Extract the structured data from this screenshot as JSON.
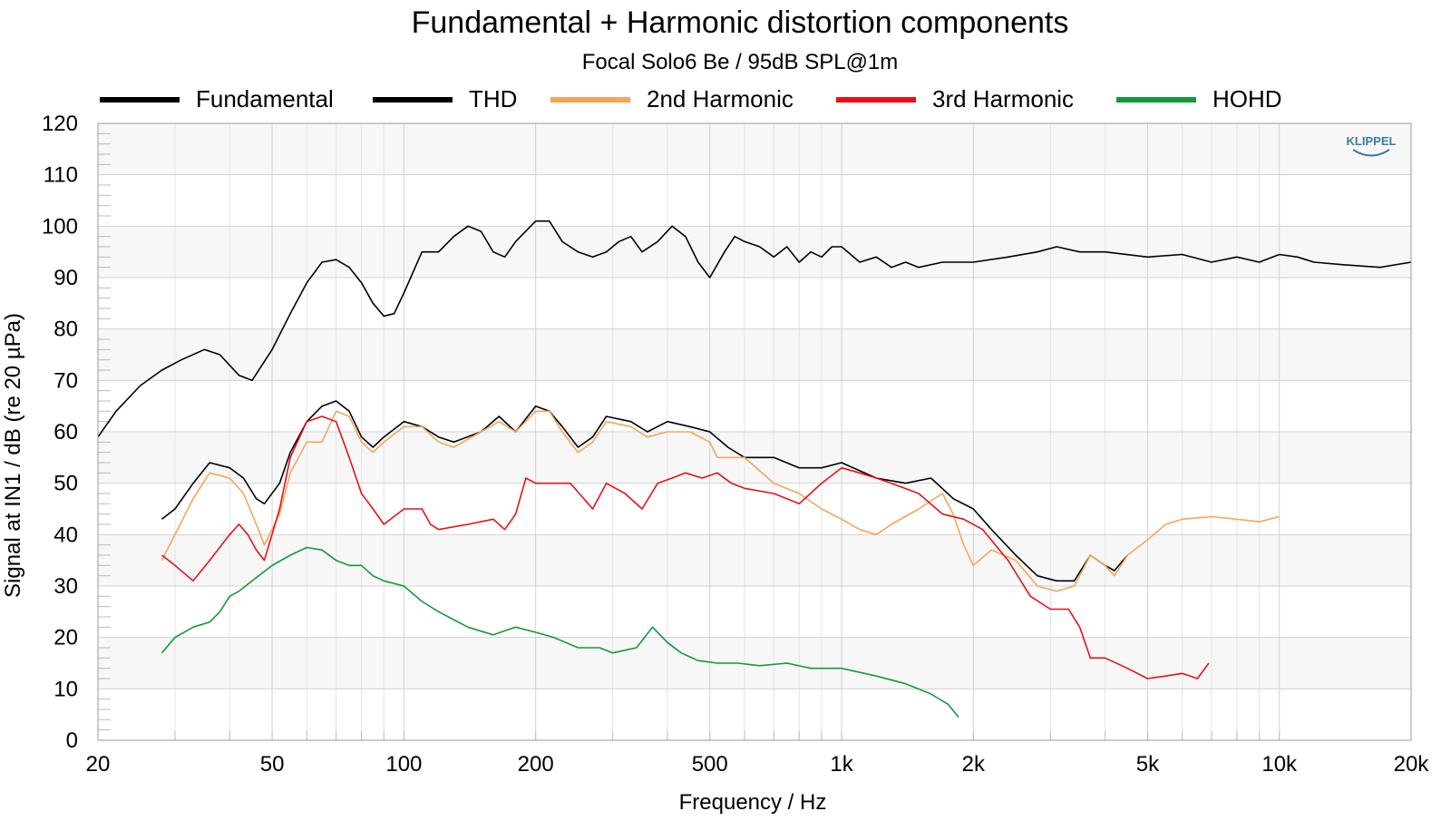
{
  "chart_data": {
    "type": "line",
    "title": "Fundamental + Harmonic distortion components",
    "subtitle": "Focal Solo6 Be / 95dB SPL@1m",
    "xlabel": "Frequency / Hz",
    "ylabel": "Signal at IN1 / dB (re 20 µPa)",
    "x_scale": "log",
    "xlim": [
      20,
      20000
    ],
    "ylim": [
      0,
      120
    ],
    "grid": true,
    "legend_position": "top",
    "watermark": "KLIPPEL",
    "x_ticks": [
      {
        "value": 20,
        "label": "20"
      },
      {
        "value": 50,
        "label": "50"
      },
      {
        "value": 100,
        "label": "100"
      },
      {
        "value": 200,
        "label": "200"
      },
      {
        "value": 500,
        "label": "500"
      },
      {
        "value": 1000,
        "label": "1k"
      },
      {
        "value": 2000,
        "label": "2k"
      },
      {
        "value": 5000,
        "label": "5k"
      },
      {
        "value": 10000,
        "label": "10k"
      },
      {
        "value": 20000,
        "label": "20k"
      }
    ],
    "y_ticks": [
      0,
      10,
      20,
      30,
      40,
      50,
      60,
      70,
      80,
      90,
      100,
      110,
      120
    ],
    "series": [
      {
        "name": "Fundamental",
        "color": "#000000",
        "legend_line_width": 6,
        "points": [
          [
            20,
            59
          ],
          [
            22,
            64
          ],
          [
            25,
            69
          ],
          [
            28,
            72
          ],
          [
            31,
            74
          ],
          [
            35,
            76
          ],
          [
            38,
            75
          ],
          [
            42,
            71
          ],
          [
            45,
            70
          ],
          [
            50,
            76
          ],
          [
            55,
            83
          ],
          [
            60,
            89
          ],
          [
            65,
            93
          ],
          [
            70,
            93.5
          ],
          [
            75,
            92
          ],
          [
            80,
            89
          ],
          [
            85,
            85
          ],
          [
            90,
            82.5
          ],
          [
            95,
            83
          ],
          [
            100,
            87
          ],
          [
            110,
            95
          ],
          [
            120,
            95
          ],
          [
            130,
            98
          ],
          [
            140,
            100
          ],
          [
            150,
            99
          ],
          [
            160,
            95
          ],
          [
            170,
            94
          ],
          [
            180,
            97
          ],
          [
            200,
            101
          ],
          [
            215,
            101
          ],
          [
            230,
            97
          ],
          [
            250,
            95
          ],
          [
            270,
            94
          ],
          [
            290,
            95
          ],
          [
            310,
            97
          ],
          [
            330,
            98
          ],
          [
            350,
            95
          ],
          [
            380,
            97
          ],
          [
            410,
            100
          ],
          [
            440,
            98
          ],
          [
            470,
            93
          ],
          [
            500,
            90
          ],
          [
            540,
            95
          ],
          [
            570,
            98
          ],
          [
            600,
            97
          ],
          [
            650,
            96
          ],
          [
            700,
            94
          ],
          [
            750,
            96
          ],
          [
            800,
            93
          ],
          [
            850,
            95
          ],
          [
            900,
            94
          ],
          [
            950,
            96
          ],
          [
            1000,
            96
          ],
          [
            1100,
            93
          ],
          [
            1200,
            94
          ],
          [
            1300,
            92
          ],
          [
            1400,
            93
          ],
          [
            1500,
            92
          ],
          [
            1700,
            93
          ],
          [
            2000,
            93
          ],
          [
            2400,
            94
          ],
          [
            2800,
            95
          ],
          [
            3100,
            96
          ],
          [
            3500,
            95
          ],
          [
            4000,
            95
          ],
          [
            5000,
            94
          ],
          [
            6000,
            94.5
          ],
          [
            7000,
            93
          ],
          [
            8000,
            94
          ],
          [
            9000,
            93
          ],
          [
            10000,
            94.5
          ],
          [
            11000,
            94
          ],
          [
            12000,
            93
          ],
          [
            14000,
            92.5
          ],
          [
            17000,
            92
          ],
          [
            20000,
            93
          ]
        ]
      },
      {
        "name": "THD",
        "color": "#000000",
        "legend_line_width": 6,
        "points": [
          [
            28,
            43
          ],
          [
            30,
            45
          ],
          [
            33,
            50
          ],
          [
            36,
            54
          ],
          [
            40,
            53
          ],
          [
            43,
            51
          ],
          [
            46,
            47
          ],
          [
            48,
            46
          ],
          [
            52,
            50
          ],
          [
            55,
            56
          ],
          [
            60,
            62
          ],
          [
            65,
            65
          ],
          [
            70,
            66
          ],
          [
            75,
            64
          ],
          [
            80,
            59
          ],
          [
            85,
            57
          ],
          [
            90,
            59
          ],
          [
            100,
            62
          ],
          [
            110,
            61
          ],
          [
            120,
            59
          ],
          [
            130,
            58
          ],
          [
            150,
            60
          ],
          [
            165,
            63
          ],
          [
            180,
            60
          ],
          [
            200,
            65
          ],
          [
            215,
            64
          ],
          [
            230,
            61
          ],
          [
            250,
            57
          ],
          [
            270,
            59
          ],
          [
            290,
            63
          ],
          [
            330,
            62
          ],
          [
            360,
            60
          ],
          [
            400,
            62
          ],
          [
            450,
            61
          ],
          [
            500,
            60
          ],
          [
            550,
            57
          ],
          [
            600,
            55
          ],
          [
            700,
            55
          ],
          [
            800,
            53
          ],
          [
            900,
            53
          ],
          [
            1000,
            54
          ],
          [
            1200,
            51
          ],
          [
            1400,
            50
          ],
          [
            1600,
            51
          ],
          [
            1800,
            47
          ],
          [
            2000,
            45
          ],
          [
            2200,
            41
          ],
          [
            2500,
            36
          ],
          [
            2800,
            32
          ],
          [
            3100,
            31
          ],
          [
            3400,
            31
          ],
          [
            3700,
            36
          ],
          [
            4000,
            34
          ],
          [
            4200,
            33
          ],
          [
            4500,
            36
          ]
        ]
      },
      {
        "name": "2nd Harmonic",
        "color": "#f5a55a",
        "legend_line_width": 6,
        "points": [
          [
            28,
            35
          ],
          [
            30,
            40
          ],
          [
            33,
            47
          ],
          [
            36,
            52
          ],
          [
            40,
            51
          ],
          [
            43,
            48
          ],
          [
            46,
            42
          ],
          [
            48,
            38
          ],
          [
            52,
            44
          ],
          [
            55,
            52
          ],
          [
            60,
            58
          ],
          [
            65,
            58
          ],
          [
            70,
            64
          ],
          [
            75,
            63
          ],
          [
            80,
            58
          ],
          [
            85,
            56
          ],
          [
            90,
            58
          ],
          [
            100,
            61
          ],
          [
            110,
            61
          ],
          [
            120,
            58
          ],
          [
            130,
            57
          ],
          [
            150,
            60
          ],
          [
            165,
            62
          ],
          [
            180,
            60
          ],
          [
            200,
            64
          ],
          [
            215,
            64
          ],
          [
            230,
            60
          ],
          [
            250,
            56
          ],
          [
            270,
            58
          ],
          [
            290,
            62
          ],
          [
            330,
            61
          ],
          [
            360,
            59
          ],
          [
            400,
            60
          ],
          [
            450,
            60
          ],
          [
            500,
            58
          ],
          [
            520,
            55
          ],
          [
            600,
            55
          ],
          [
            700,
            50
          ],
          [
            800,
            48
          ],
          [
            900,
            45
          ],
          [
            1000,
            43
          ],
          [
            1100,
            41
          ],
          [
            1200,
            40
          ],
          [
            1300,
            42
          ],
          [
            1500,
            45
          ],
          [
            1700,
            48
          ],
          [
            1800,
            44
          ],
          [
            1900,
            38
          ],
          [
            2000,
            34
          ],
          [
            2200,
            37
          ],
          [
            2500,
            35
          ],
          [
            2800,
            30
          ],
          [
            3100,
            29
          ],
          [
            3400,
            30
          ],
          [
            3700,
            36
          ],
          [
            4000,
            34
          ],
          [
            4200,
            32
          ],
          [
            4500,
            36
          ],
          [
            5000,
            39
          ],
          [
            5500,
            42
          ],
          [
            6000,
            43
          ],
          [
            7000,
            43.5
          ],
          [
            8000,
            43
          ],
          [
            9000,
            42.5
          ],
          [
            10000,
            43.5
          ]
        ]
      },
      {
        "name": "3rd Harmonic",
        "color": "#e8101a",
        "legend_line_width": 6,
        "points": [
          [
            28,
            36
          ],
          [
            30,
            34
          ],
          [
            33,
            31
          ],
          [
            36,
            35
          ],
          [
            40,
            40
          ],
          [
            42,
            42
          ],
          [
            44,
            40
          ],
          [
            46,
            37
          ],
          [
            48,
            35
          ],
          [
            52,
            45
          ],
          [
            55,
            55
          ],
          [
            60,
            62
          ],
          [
            65,
            63
          ],
          [
            70,
            62
          ],
          [
            75,
            55
          ],
          [
            80,
            48
          ],
          [
            85,
            45
          ],
          [
            90,
            42
          ],
          [
            100,
            45
          ],
          [
            110,
            45
          ],
          [
            115,
            42
          ],
          [
            120,
            41
          ],
          [
            140,
            42
          ],
          [
            160,
            43
          ],
          [
            170,
            41
          ],
          [
            180,
            44
          ],
          [
            190,
            51
          ],
          [
            200,
            50
          ],
          [
            220,
            50
          ],
          [
            240,
            50
          ],
          [
            270,
            45
          ],
          [
            290,
            50
          ],
          [
            320,
            48
          ],
          [
            350,
            45
          ],
          [
            380,
            50
          ],
          [
            410,
            51
          ],
          [
            440,
            52
          ],
          [
            480,
            51
          ],
          [
            520,
            52
          ],
          [
            560,
            50
          ],
          [
            600,
            49
          ],
          [
            700,
            48
          ],
          [
            800,
            46
          ],
          [
            900,
            50
          ],
          [
            1000,
            53
          ],
          [
            1100,
            52
          ],
          [
            1200,
            51
          ],
          [
            1300,
            50
          ],
          [
            1500,
            48
          ],
          [
            1700,
            44
          ],
          [
            1900,
            43
          ],
          [
            2100,
            41
          ],
          [
            2400,
            35
          ],
          [
            2700,
            28
          ],
          [
            3000,
            25.5
          ],
          [
            3300,
            25.5
          ],
          [
            3500,
            22
          ],
          [
            3700,
            16
          ],
          [
            4000,
            16
          ],
          [
            4500,
            14
          ],
          [
            5000,
            12
          ],
          [
            5500,
            12.5
          ],
          [
            6000,
            13
          ],
          [
            6500,
            12
          ],
          [
            6900,
            15
          ]
        ]
      },
      {
        "name": "HOHD",
        "color": "#129a3a",
        "legend_line_width": 6,
        "points": [
          [
            28,
            17
          ],
          [
            30,
            20
          ],
          [
            33,
            22
          ],
          [
            36,
            23
          ],
          [
            38,
            25
          ],
          [
            40,
            28
          ],
          [
            42,
            29
          ],
          [
            45,
            31
          ],
          [
            50,
            34
          ],
          [
            55,
            36
          ],
          [
            60,
            37.5
          ],
          [
            65,
            37
          ],
          [
            70,
            35
          ],
          [
            75,
            34
          ],
          [
            80,
            34
          ],
          [
            85,
            32
          ],
          [
            90,
            31
          ],
          [
            100,
            30
          ],
          [
            110,
            27
          ],
          [
            120,
            25
          ],
          [
            140,
            22
          ],
          [
            160,
            20.5
          ],
          [
            180,
            22
          ],
          [
            200,
            21
          ],
          [
            220,
            20
          ],
          [
            250,
            18
          ],
          [
            280,
            18
          ],
          [
            300,
            17
          ],
          [
            340,
            18
          ],
          [
            370,
            22
          ],
          [
            400,
            19
          ],
          [
            430,
            17
          ],
          [
            470,
            15.5
          ],
          [
            520,
            15
          ],
          [
            580,
            15
          ],
          [
            650,
            14.5
          ],
          [
            750,
            15
          ],
          [
            850,
            14
          ],
          [
            1000,
            14
          ],
          [
            1200,
            12.5
          ],
          [
            1400,
            11
          ],
          [
            1600,
            9
          ],
          [
            1750,
            7
          ],
          [
            1850,
            4.5
          ]
        ]
      }
    ]
  }
}
